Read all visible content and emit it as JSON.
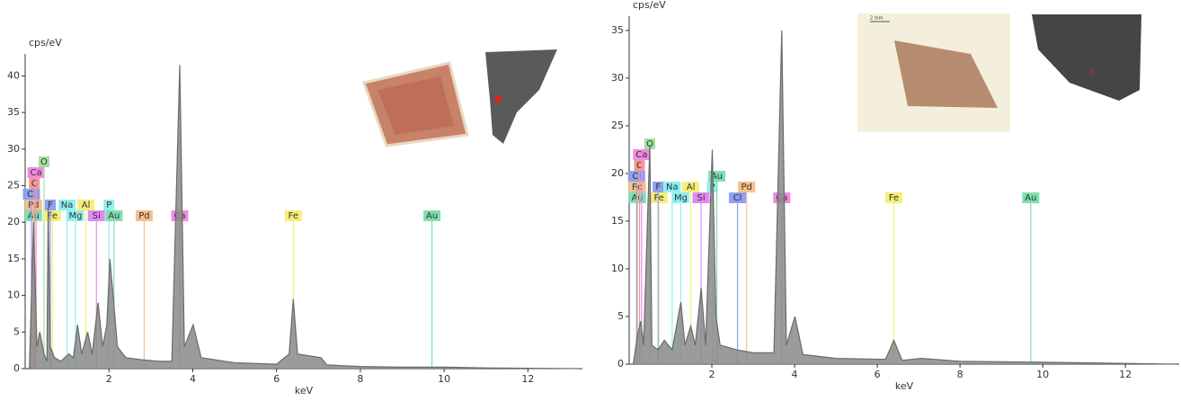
{
  "chart_data": [
    {
      "type": "spectrum",
      "y_label": "cps/eV",
      "x_label": "keV",
      "xlim": [
        0,
        13.3
      ],
      "xticks": [
        2,
        4,
        6,
        8,
        10,
        12
      ],
      "ylim": [
        0,
        43
      ],
      "yticks": [
        0,
        5,
        10,
        15,
        20,
        25,
        30,
        35,
        40
      ],
      "color": "#6a6a6a",
      "x": [
        0.1,
        0.2,
        0.28,
        0.35,
        0.45,
        0.52,
        0.55,
        0.6,
        0.7,
        0.85,
        1.04,
        1.15,
        1.25,
        1.35,
        1.49,
        1.6,
        1.74,
        1.85,
        1.95,
        2.02,
        2.1,
        2.2,
        2.4,
        2.8,
        3.2,
        3.5,
        3.69,
        3.8,
        4.01,
        4.2,
        5.0,
        6.0,
        6.3,
        6.4,
        6.5,
        7.06,
        7.2,
        8.0,
        9.0,
        10,
        11,
        12,
        13.2
      ],
      "values": [
        0,
        20,
        3,
        5,
        2,
        1,
        22,
        3,
        1.5,
        1,
        2,
        1.5,
        6,
        2,
        5,
        2,
        9,
        3,
        6,
        15,
        10,
        3,
        1.5,
        1.2,
        1,
        1,
        41.5,
        3,
        6,
        1.5,
        0.8,
        0.6,
        2,
        9.5,
        2,
        1.5,
        0.5,
        0.3,
        0.2,
        0.2,
        0.1,
        0.05,
        0
      ],
      "elements": [
        {
          "label": "Au",
          "x": 0.2,
          "color": "#7fe0b0"
        },
        {
          "label": "Pd",
          "x": 0.2,
          "color": "#f5c08a"
        },
        {
          "label": "Cl",
          "x": 0.15,
          "color": "#8f9ff0"
        },
        {
          "label": "C",
          "x": 0.22,
          "color": "#f59a8a"
        },
        {
          "label": "Ca",
          "x": 0.26,
          "color": "#f08ae0"
        },
        {
          "label": "O",
          "x": 0.45,
          "color": "#a0e0a0"
        },
        {
          "label": "Fe",
          "x": 0.65,
          "color": "#f5ef7a"
        },
        {
          "label": "F",
          "x": 0.6,
          "color": "#8f9ff0"
        },
        {
          "label": "Na",
          "x": 1.0,
          "color": "#8ef0f0"
        },
        {
          "label": "Mg",
          "x": 1.2,
          "color": "#8ef0f0"
        },
        {
          "label": "Al",
          "x": 1.45,
          "color": "#f5ef7a"
        },
        {
          "label": "Si",
          "x": 1.7,
          "color": "#e08af0"
        },
        {
          "label": "P",
          "x": 2.0,
          "color": "#8ef0f0"
        },
        {
          "label": "Au",
          "x": 2.12,
          "color": "#7fe0b0"
        },
        {
          "label": "Pd",
          "x": 2.84,
          "color": "#f5c08a"
        },
        {
          "label": "Ca",
          "x": 3.69,
          "color": "#f08ae0"
        },
        {
          "label": "Fe",
          "x": 6.4,
          "color": "#f5ef7a"
        },
        {
          "label": "Au",
          "x": 9.71,
          "color": "#7fe0b0"
        }
      ]
    },
    {
      "type": "spectrum",
      "y_label": "cps/eV",
      "x_label": "keV",
      "inset_scale": "2 mm",
      "xlim": [
        0,
        13.3
      ],
      "xticks": [
        2,
        4,
        6,
        8,
        10,
        12
      ],
      "ylim": [
        0,
        36.5
      ],
      "yticks": [
        0,
        5,
        10,
        15,
        20,
        25,
        30,
        35
      ],
      "color": "#6a6a6a",
      "x": [
        0.1,
        0.2,
        0.28,
        0.35,
        0.5,
        0.55,
        0.7,
        0.85,
        1.04,
        1.25,
        1.35,
        1.49,
        1.6,
        1.74,
        1.85,
        2.01,
        2.1,
        2.2,
        2.6,
        3.0,
        3.5,
        3.69,
        3.8,
        4.01,
        4.2,
        5.0,
        6.2,
        6.4,
        6.6,
        7.06,
        8.0,
        10,
        13.2
      ],
      "values": [
        0,
        3,
        4.5,
        2,
        23,
        2,
        1.5,
        2.5,
        1.5,
        6.5,
        2,
        4,
        2,
        8,
        2,
        22.5,
        5,
        2,
        1.5,
        1.2,
        1.2,
        35,
        2,
        5,
        1,
        0.6,
        0.5,
        2.5,
        0.4,
        0.6,
        0.3,
        0.2,
        0
      ],
      "elements": [
        {
          "label": "Au",
          "x": 0.2,
          "color": "#7fe0b0"
        },
        {
          "label": "Pd",
          "x": 0.2,
          "color": "#f5c08a"
        },
        {
          "label": "Cl",
          "x": 0.18,
          "color": "#8f9ff0"
        },
        {
          "label": "C",
          "x": 0.25,
          "color": "#f59a8a"
        },
        {
          "label": "Ca",
          "x": 0.3,
          "color": "#f08ae0"
        },
        {
          "label": "O",
          "x": 0.5,
          "color": "#a0e0a0"
        },
        {
          "label": "Fe",
          "x": 0.72,
          "color": "#f5ef7a"
        },
        {
          "label": "F",
          "x": 0.7,
          "color": "#8f9ff0"
        },
        {
          "label": "Na",
          "x": 1.04,
          "color": "#8ef0f0"
        },
        {
          "label": "Mg",
          "x": 1.25,
          "color": "#8ef0f0"
        },
        {
          "label": "Al",
          "x": 1.49,
          "color": "#f5ef7a"
        },
        {
          "label": "Si",
          "x": 1.74,
          "color": "#e08af0"
        },
        {
          "label": "P",
          "x": 2.01,
          "color": "#8ef0f0"
        },
        {
          "label": "Au",
          "x": 2.12,
          "color": "#7fe0b0"
        },
        {
          "label": "Cl",
          "x": 2.62,
          "color": "#8f9ff0"
        },
        {
          "label": "Pd",
          "x": 2.84,
          "color": "#f5c08a"
        },
        {
          "label": "Ca",
          "x": 3.69,
          "color": "#f08ae0"
        },
        {
          "label": "Fe",
          "x": 6.4,
          "color": "#f5ef7a"
        },
        {
          "label": "Au",
          "x": 9.71,
          "color": "#7fe0b0"
        }
      ]
    }
  ]
}
